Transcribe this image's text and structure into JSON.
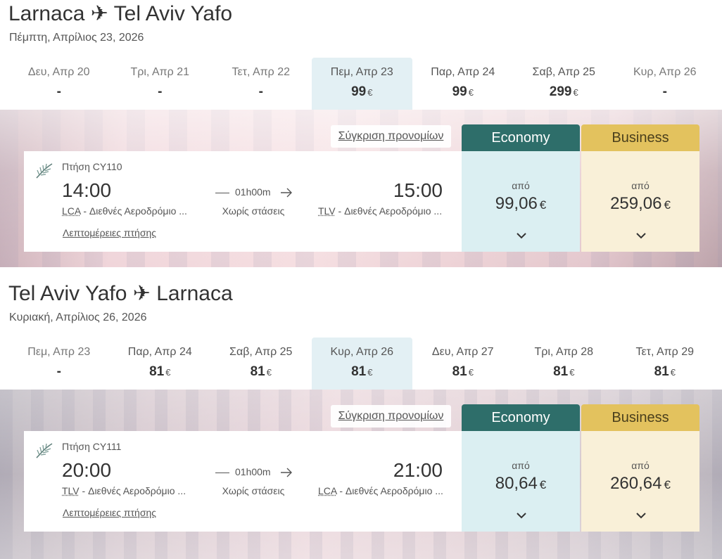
{
  "currency_symbol": "€",
  "colors": {
    "economy": "#2e6e6a",
    "business": "#e3c25e",
    "selected_date": "#e3f0f4"
  },
  "outbound": {
    "title": "Larnaca ✈ Tel Aviv Yafo",
    "date": "Πέμπτη, Απρίλιος 23, 2026",
    "dates": [
      {
        "label": "Δευ, Απρ 20",
        "price": "-"
      },
      {
        "label": "Τρι, Απρ 21",
        "price": "-"
      },
      {
        "label": "Τετ, Απρ 22",
        "price": "-"
      },
      {
        "label": "Πεμ, Απρ 23",
        "price": "99",
        "selected": true
      },
      {
        "label": "Παρ, Απρ 24",
        "price": "99"
      },
      {
        "label": "Σαβ, Απρ 25",
        "price": "299"
      },
      {
        "label": "Κυρ, Απρ 26",
        "price": "-"
      }
    ],
    "compare_label": "Σύγκριση προνομίων",
    "economy_label": "Economy",
    "business_label": "Business",
    "flight": {
      "number": "Πτήση CY110",
      "departure_time": "14:00",
      "arrival_time": "15:00",
      "departure_code": "LCA",
      "departure_airport": "Διεθνές Αεροδρόμιο ...",
      "arrival_code": "TLV",
      "arrival_airport": "Διεθνές Αεροδρόμιο ...",
      "duration": "01h00m",
      "stops": "Χωρίς στάσεις",
      "details_label": "Λεπτομέρειες πτήσης"
    },
    "fares": {
      "from_label": "από",
      "economy_price": "99,06",
      "business_price": "259,06"
    }
  },
  "return": {
    "title": "Tel Aviv Yafo ✈ Larnaca",
    "date": "Κυριακή, Απρίλιος 26, 2026",
    "dates": [
      {
        "label": "Πεμ, Απρ 23",
        "price": "-"
      },
      {
        "label": "Παρ, Απρ 24",
        "price": "81"
      },
      {
        "label": "Σαβ, Απρ 25",
        "price": "81"
      },
      {
        "label": "Κυρ, Απρ 26",
        "price": "81",
        "selected": true
      },
      {
        "label": "Δευ, Απρ 27",
        "price": "81"
      },
      {
        "label": "Τρι, Απρ 28",
        "price": "81"
      },
      {
        "label": "Τετ, Απρ 29",
        "price": "81"
      }
    ],
    "compare_label": "Σύγκριση προνομίων",
    "economy_label": "Economy",
    "business_label": "Business",
    "flight": {
      "number": "Πτήση CY111",
      "departure_time": "20:00",
      "arrival_time": "21:00",
      "departure_code": "TLV",
      "departure_airport": "Διεθνές Αεροδρόμιο ...",
      "arrival_code": "LCA",
      "arrival_airport": "Διεθνές Αεροδρόμιο ...",
      "duration": "01h00m",
      "stops": "Χωρίς στάσεις",
      "details_label": "Λεπτομέρειες πτήσης"
    },
    "fares": {
      "from_label": "από",
      "economy_price": "80,64",
      "business_price": "260,64"
    }
  }
}
